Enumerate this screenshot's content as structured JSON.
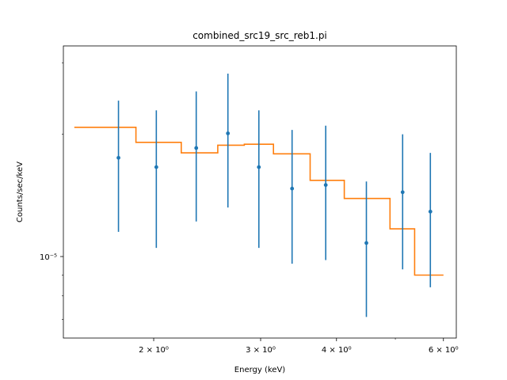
{
  "chart_data": {
    "type": "scatter",
    "title": "combined_src19_src_reb1.pi",
    "xlabel": "Energy (keV)",
    "ylabel": "Counts/sec/keV",
    "xscale": "log",
    "yscale": "log",
    "xlim": [
      1.42,
      6.3
    ],
    "ylim": [
      6.3e-06,
      3.3e-05
    ],
    "x_ticks": [
      {
        "value": 2,
        "label": "2 × 10⁰"
      },
      {
        "value": 3,
        "label": "3 × 10⁰"
      },
      {
        "value": 4,
        "label": "4 × 10⁰"
      },
      {
        "value": 6,
        "label": "6 × 10⁰"
      }
    ],
    "x_minor_ticks": [
      5
    ],
    "y_ticks": [
      {
        "value": 1e-05,
        "label": "10⁻⁵"
      }
    ],
    "grid": false,
    "colors": {
      "data": "#1f77b4",
      "model": "#ff7f0e"
    },
    "series": [
      {
        "kind": "errorbar",
        "x": [
          1.75,
          2.02,
          2.35,
          2.65,
          2.98,
          3.38,
          3.84,
          4.48,
          5.14,
          5.71
        ],
        "y": [
          1.75e-05,
          1.66e-05,
          1.85e-05,
          2.01e-05,
          1.66e-05,
          1.47e-05,
          1.5e-05,
          1.08e-05,
          1.44e-05,
          1.29e-05
        ],
        "yerr_low": [
          1.15e-05,
          1.05e-05,
          1.22e-05,
          1.32e-05,
          1.05e-05,
          9.6e-06,
          9.8e-06,
          7.1e-06,
          9.3e-06,
          8.4e-06
        ],
        "yerr_high": [
          2.42e-05,
          2.29e-05,
          2.55e-05,
          2.82e-05,
          2.29e-05,
          2.05e-05,
          2.1e-05,
          1.53e-05,
          2e-05,
          1.8e-05
        ]
      },
      {
        "kind": "step",
        "x_edges": [
          1.48,
          1.87,
          2.22,
          2.55,
          2.82,
          3.15,
          3.62,
          4.12,
          4.9,
          5.38,
          6.0
        ],
        "y": [
          2.08e-05,
          1.91e-05,
          1.8e-05,
          1.88e-05,
          1.89e-05,
          1.79e-05,
          1.54e-05,
          1.39e-05,
          1.17e-05,
          9e-06
        ]
      }
    ]
  }
}
